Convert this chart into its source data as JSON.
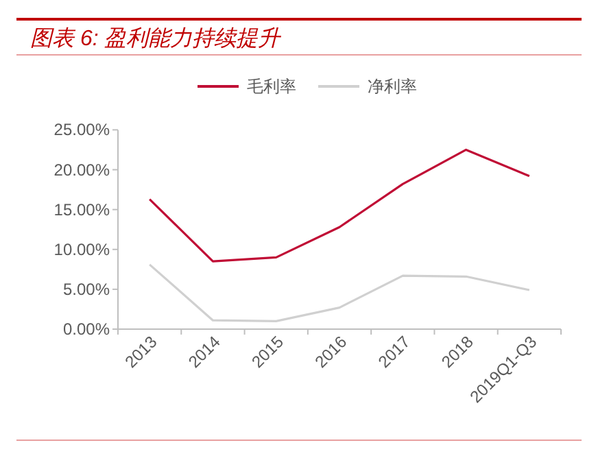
{
  "chart_data": {
    "type": "line",
    "title": "图表 6:  盈利能力持续提升",
    "categories": [
      "2013",
      "2014",
      "2015",
      "2016",
      "2017",
      "2018",
      "2019Q1-Q3"
    ],
    "series": [
      {
        "name": "毛利率",
        "color": "#c00d35",
        "values": [
          16.3,
          8.5,
          9.0,
          12.8,
          18.2,
          22.5,
          19.2
        ]
      },
      {
        "name": "净利率",
        "color": "#d0d0d0",
        "values": [
          8.1,
          1.1,
          1.0,
          2.7,
          6.7,
          6.6,
          4.9
        ]
      }
    ],
    "ylim": [
      0,
      25
    ],
    "yticks": [
      {
        "value": 0,
        "label": "0.00%"
      },
      {
        "value": 5,
        "label": "5.00%"
      },
      {
        "value": 10,
        "label": "10.00%"
      },
      {
        "value": 15,
        "label": "15.00%"
      },
      {
        "value": 20,
        "label": "20.00%"
      },
      {
        "value": 25,
        "label": "25.00%"
      }
    ],
    "grid": false,
    "legend": "top",
    "marker": "none",
    "line_style": "solid"
  }
}
